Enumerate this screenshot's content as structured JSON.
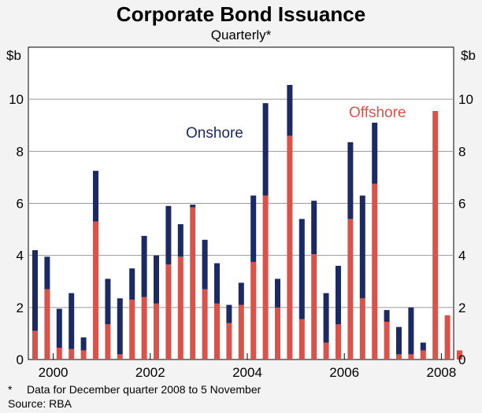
{
  "chart_data": {
    "type": "bar",
    "stacked": true,
    "title": "Corporate Bond Issuance",
    "subtitle": "Quarterly*",
    "ylabel": "$b",
    "ylim": [
      0,
      12
    ],
    "yticks": [
      0,
      2,
      4,
      6,
      8,
      10
    ],
    "x_tick_labels": [
      "2000",
      "2002",
      "2004",
      "2006",
      "2008"
    ],
    "x_tick_positions_quarter_index": [
      1.5,
      9.5,
      17.5,
      25.5,
      33.5
    ],
    "series": [
      {
        "name": "Offshore",
        "color": "#d9534a",
        "values": [
          1.1,
          2.7,
          0.45,
          0.4,
          0.35,
          5.3,
          1.35,
          0.2,
          2.3,
          2.4,
          2.15,
          3.65,
          3.95,
          5.85,
          2.7,
          2.15,
          1.4,
          2.1,
          3.75,
          6.3,
          2.0,
          8.6,
          1.55,
          4.05,
          0.65,
          1.35,
          5.4,
          2.35,
          6.75,
          1.45,
          0.2,
          0.2,
          0.35,
          9.55,
          1.7,
          0.35
        ]
      },
      {
        "name": "Onshore",
        "color": "#1b2a63",
        "values": [
          3.1,
          1.25,
          1.5,
          2.15,
          0.5,
          1.95,
          1.75,
          2.15,
          1.2,
          2.35,
          1.85,
          2.25,
          1.25,
          0.1,
          1.9,
          1.55,
          0.7,
          0.85,
          2.55,
          3.55,
          1.1,
          1.95,
          3.85,
          2.05,
          1.9,
          2.25,
          2.95,
          3.95,
          2.35,
          0.45,
          1.05,
          1.8,
          0.3,
          0.0,
          0.0,
          0.0
        ]
      }
    ],
    "labels": {
      "onshore": "Onshore",
      "offshore": "Offshore"
    },
    "footnote": "Data for December quarter 2008 to 5 November",
    "footnote_marker": "*",
    "source": "Source: RBA"
  }
}
